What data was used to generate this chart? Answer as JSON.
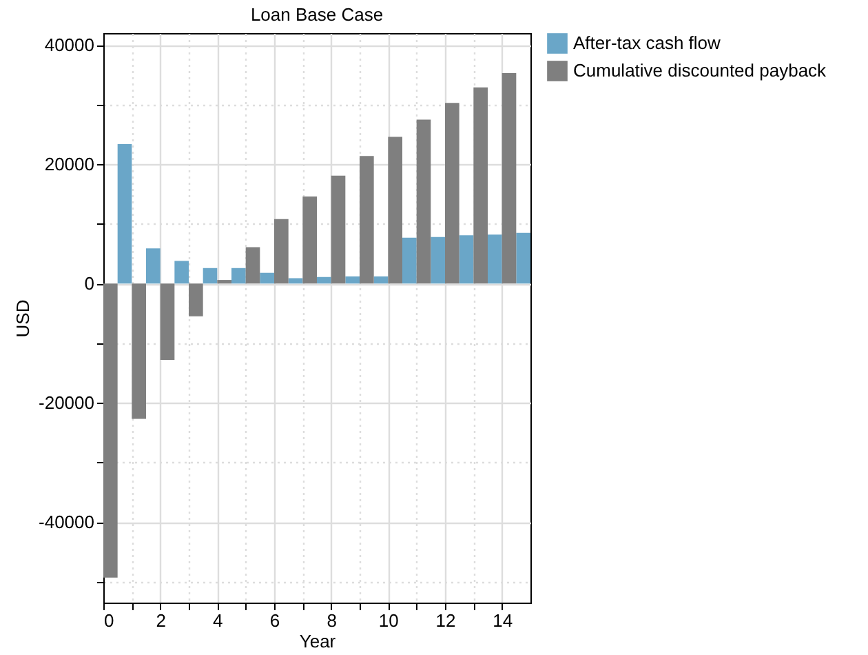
{
  "chart_data": {
    "type": "bar",
    "title": "Loan Base Case",
    "xlabel": "Year",
    "ylabel": "USD",
    "x": [
      0,
      1,
      2,
      3,
      4,
      5,
      6,
      7,
      8,
      9,
      10,
      11,
      12,
      13,
      14,
      15
    ],
    "series": [
      {
        "name": "After-tax cash flow",
        "color": "#6aa6c8",
        "values": [
          null,
          23400,
          5900,
          3800,
          2600,
          2600,
          1800,
          900,
          1100,
          1200,
          1200,
          7700,
          7800,
          8100,
          8200,
          8500
        ]
      },
      {
        "name": "Cumulative discounted payback",
        "color": "#7f7f7f",
        "values": [
          -49300,
          -22700,
          -12800,
          -5500,
          600,
          6100,
          10800,
          14600,
          18100,
          21400,
          24600,
          27500,
          30300,
          32900,
          35300,
          null
        ]
      }
    ],
    "xlim": [
      0,
      15
    ],
    "xticks": [
      0,
      {
        "value": 1,
        "label": null
      },
      2,
      {
        "value": 3,
        "label": null
      },
      4,
      {
        "value": 5,
        "label": null
      },
      6,
      {
        "value": 7,
        "label": null
      },
      8,
      {
        "value": 9,
        "label": null
      },
      10,
      {
        "value": 11,
        "label": null
      },
      12,
      {
        "value": 13,
        "label": null
      },
      14
    ],
    "ylim": [
      -53500,
      42000
    ],
    "yticks": [
      {
        "value": -50000,
        "label": null
      },
      -40000,
      {
        "value": -30000,
        "label": null
      },
      -20000,
      {
        "value": -10000,
        "label": null
      },
      0,
      {
        "value": 10000,
        "label": null
      },
      20000,
      {
        "value": 30000,
        "label": null
      },
      40000
    ],
    "grid": true,
    "legend": "top right"
  }
}
